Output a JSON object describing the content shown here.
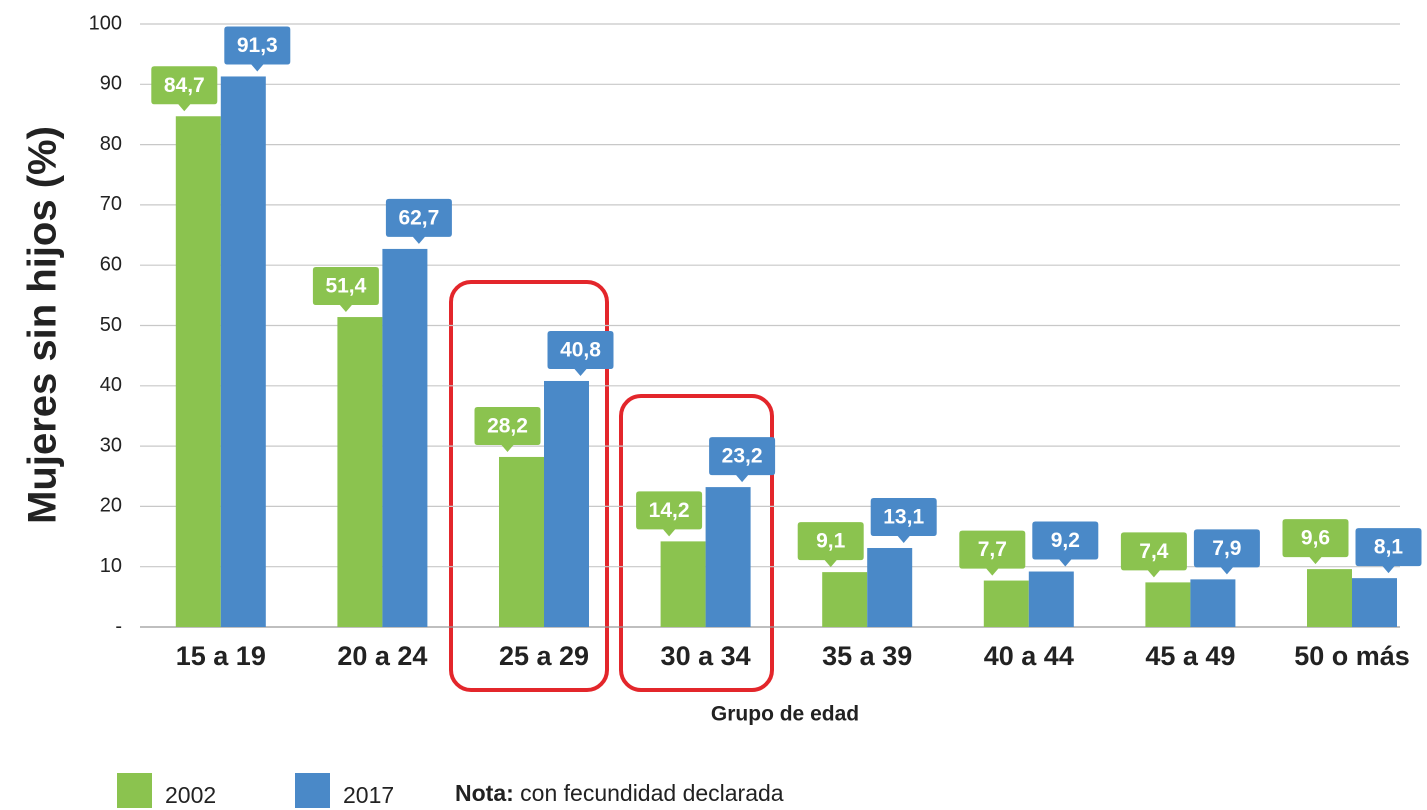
{
  "chart_data": {
    "type": "bar",
    "y_axis_label": "Mujeres sin hijos (%)",
    "x_axis_label": "Grupo de edad",
    "categories": [
      "15 a 19",
      "20 a 24",
      "25 a 29",
      "30 a 34",
      "35 a 39",
      "40 a 44",
      "45 a 49",
      "50 o más"
    ],
    "series": [
      {
        "name": "2002",
        "color": "#8bc34f",
        "values": [
          84.7,
          51.4,
          28.2,
          14.2,
          9.1,
          7.7,
          7.4,
          9.6
        ],
        "value_labels": [
          "84,7",
          "51,4",
          "28,2",
          "14,2",
          "9,1",
          "7,7",
          "7,4",
          "9,6"
        ]
      },
      {
        "name": "2017",
        "color": "#4a89c8",
        "values": [
          91.3,
          62.7,
          40.8,
          23.2,
          13.1,
          9.2,
          7.9,
          8.1
        ],
        "value_labels": [
          "91,3",
          "62,7",
          "40,8",
          "23,2",
          "13,1",
          "9,2",
          "7,9",
          "8,1"
        ]
      }
    ],
    "ylim": [
      0,
      100
    ],
    "yticks": [
      {
        "value": 0,
        "label": "-"
      },
      10,
      20,
      30,
      40,
      50,
      60,
      70,
      80,
      90,
      100
    ],
    "grid": true,
    "note_label": "Nota:",
    "note": "con fecundidad declarada"
  }
}
